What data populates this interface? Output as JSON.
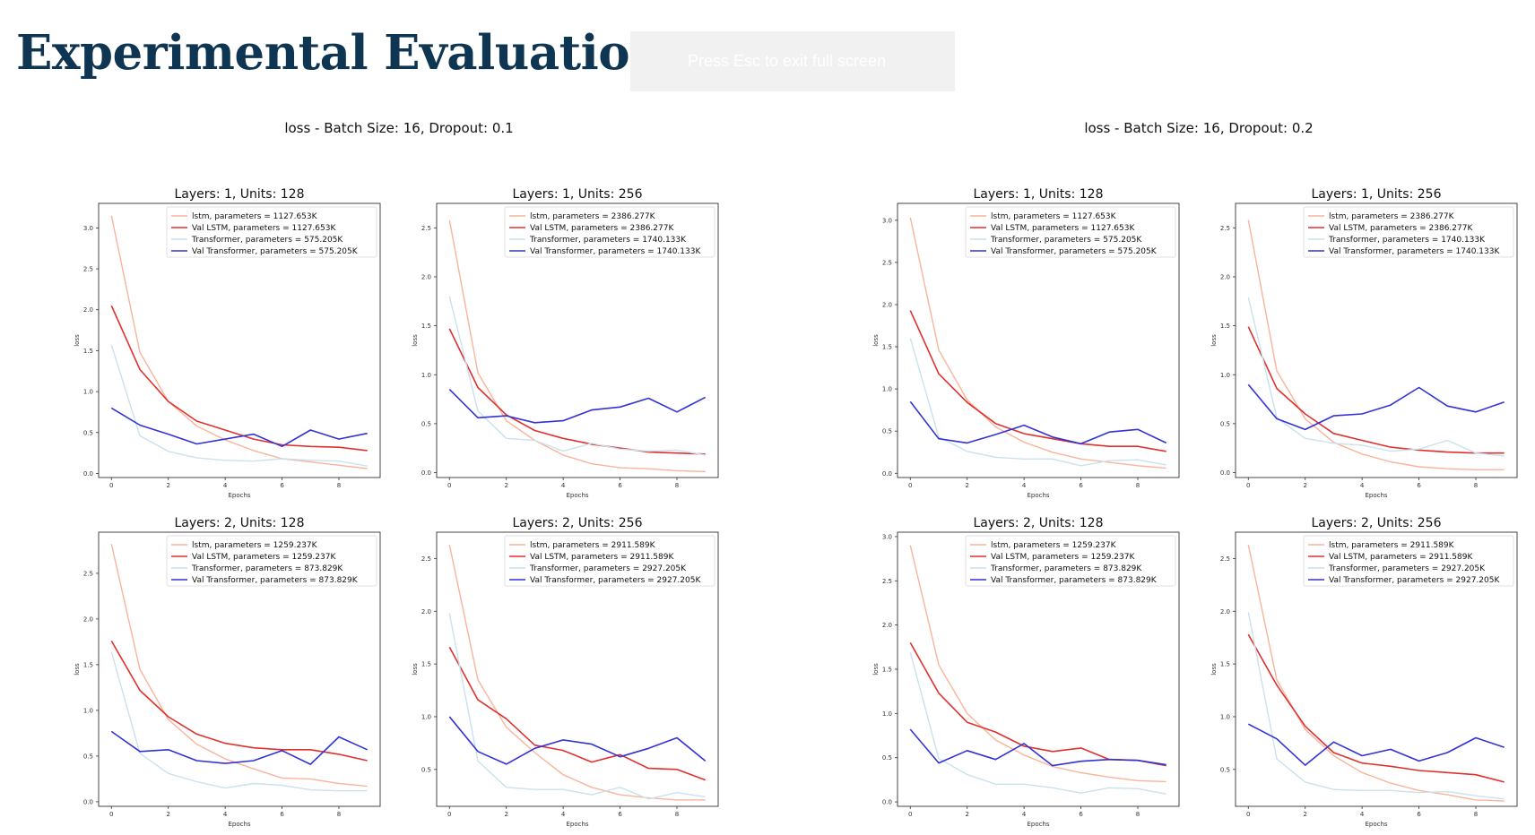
{
  "page": {
    "title": "Experimental Evaluation II - Loss",
    "fullscreen_hint": "Press Esc to exit full screen"
  },
  "groups": [
    {
      "title": "loss - Batch Size: 16, Dropout: 0.1"
    },
    {
      "title": "loss - Batch Size: 16, Dropout: 0.2"
    }
  ],
  "colors": {
    "lstm": "#f9b49b",
    "val_lstm": "#e0312e",
    "transformer": "#c9e2ee",
    "val_transformer": "#3232d6"
  },
  "chart_data": [
    {
      "type": "line",
      "group": 0,
      "title": "Layers: 1, Units: 128",
      "xlabel": "Epochs",
      "ylabel": "loss",
      "x": [
        0,
        1,
        2,
        3,
        4,
        5,
        6,
        7,
        8,
        9
      ],
      "xticks": [
        0,
        2,
        4,
        6,
        8
      ],
      "ylim": [
        -0.05,
        3.3
      ],
      "yticks": [
        0.0,
        0.5,
        1.0,
        1.5,
        2.0,
        2.5,
        3.0
      ],
      "legend_position": "upper right",
      "series": [
        {
          "name": "lstm, parameters = 1127.653K",
          "color": "#f9b49b",
          "values": [
            3.15,
            1.48,
            0.88,
            0.58,
            0.41,
            0.28,
            0.18,
            0.14,
            0.1,
            0.06
          ]
        },
        {
          "name": "Val LSTM, parameters = 1127.653K",
          "color": "#e0312e",
          "values": [
            2.05,
            1.27,
            0.88,
            0.64,
            0.53,
            0.42,
            0.35,
            0.33,
            0.32,
            0.28
          ]
        },
        {
          "name": "Transformer, parameters = 575.205K",
          "color": "#c9e2ee",
          "values": [
            1.57,
            0.46,
            0.27,
            0.19,
            0.16,
            0.15,
            0.18,
            0.16,
            0.15,
            0.09
          ]
        },
        {
          "name": "Val Transformer, parameters = 575.205K",
          "color": "#3232d6",
          "values": [
            0.8,
            0.59,
            0.48,
            0.36,
            0.42,
            0.48,
            0.33,
            0.53,
            0.42,
            0.49
          ]
        }
      ]
    },
    {
      "type": "line",
      "group": 0,
      "title": "Layers: 1, Units: 256",
      "xlabel": "Epochs",
      "ylabel": "loss",
      "x": [
        0,
        1,
        2,
        3,
        4,
        5,
        6,
        7,
        8,
        9
      ],
      "xticks": [
        0,
        2,
        4,
        6,
        8
      ],
      "ylim": [
        -0.05,
        2.75
      ],
      "yticks": [
        0.0,
        0.5,
        1.0,
        1.5,
        2.0,
        2.5
      ],
      "legend_position": "upper right",
      "series": [
        {
          "name": "lstm, parameters = 2386.277K",
          "color": "#f9b49b",
          "values": [
            2.58,
            1.02,
            0.53,
            0.33,
            0.18,
            0.09,
            0.05,
            0.04,
            0.02,
            0.01
          ]
        },
        {
          "name": "Val LSTM, parameters = 2386.277K",
          "color": "#e0312e",
          "values": [
            1.47,
            0.87,
            0.59,
            0.43,
            0.35,
            0.29,
            0.25,
            0.21,
            0.2,
            0.19
          ]
        },
        {
          "name": "Transformer, parameters = 1740.133K",
          "color": "#c9e2ee",
          "values": [
            1.8,
            0.63,
            0.35,
            0.33,
            0.22,
            0.3,
            0.24,
            0.22,
            0.23,
            0.18
          ]
        },
        {
          "name": "Val Transformer, parameters = 1740.133K",
          "color": "#3232d6",
          "values": [
            0.85,
            0.56,
            0.58,
            0.51,
            0.53,
            0.64,
            0.67,
            0.76,
            0.62,
            0.77
          ]
        }
      ]
    },
    {
      "type": "line",
      "group": 1,
      "title": "Layers: 1, Units: 128",
      "xlabel": "Epochs",
      "ylabel": "loss",
      "x": [
        0,
        1,
        2,
        3,
        4,
        5,
        6,
        7,
        8,
        9
      ],
      "xticks": [
        0,
        2,
        4,
        6,
        8
      ],
      "ylim": [
        -0.05,
        3.2
      ],
      "yticks": [
        0.0,
        0.5,
        1.0,
        1.5,
        2.0,
        2.5,
        3.0
      ],
      "legend_position": "upper right",
      "series": [
        {
          "name": "lstm, parameters = 1127.653K",
          "color": "#f9b49b",
          "values": [
            3.03,
            1.46,
            0.87,
            0.55,
            0.37,
            0.25,
            0.17,
            0.13,
            0.09,
            0.06
          ]
        },
        {
          "name": "Val LSTM, parameters = 1127.653K",
          "color": "#e0312e",
          "values": [
            1.93,
            1.18,
            0.84,
            0.59,
            0.47,
            0.41,
            0.35,
            0.32,
            0.32,
            0.26
          ]
        },
        {
          "name": "Transformer, parameters = 575.205K",
          "color": "#c9e2ee",
          "values": [
            1.6,
            0.43,
            0.26,
            0.19,
            0.17,
            0.17,
            0.09,
            0.15,
            0.16,
            0.1
          ]
        },
        {
          "name": "Val Transformer, parameters = 575.205K",
          "color": "#3232d6",
          "values": [
            0.85,
            0.41,
            0.36,
            0.46,
            0.57,
            0.43,
            0.35,
            0.49,
            0.52,
            0.36
          ]
        }
      ]
    },
    {
      "type": "line",
      "group": 1,
      "title": "Layers: 1, Units: 256",
      "xlabel": "Epochs",
      "ylabel": "loss",
      "x": [
        0,
        1,
        2,
        3,
        4,
        5,
        6,
        7,
        8,
        9
      ],
      "xticks": [
        0,
        2,
        4,
        6,
        8
      ],
      "ylim": [
        -0.05,
        2.75
      ],
      "yticks": [
        0.0,
        0.5,
        1.0,
        1.5,
        2.0,
        2.5
      ],
      "legend_position": "upper right",
      "series": [
        {
          "name": "lstm, parameters = 2386.277K",
          "color": "#f9b49b",
          "values": [
            2.58,
            1.04,
            0.55,
            0.31,
            0.19,
            0.11,
            0.06,
            0.04,
            0.03,
            0.03
          ]
        },
        {
          "name": "Val LSTM, parameters = 2386.277K",
          "color": "#e0312e",
          "values": [
            1.49,
            0.86,
            0.6,
            0.4,
            0.33,
            0.26,
            0.23,
            0.21,
            0.2,
            0.2
          ]
        },
        {
          "name": "Transformer, parameters = 1740.133K",
          "color": "#c9e2ee",
          "values": [
            1.79,
            0.56,
            0.35,
            0.3,
            0.28,
            0.22,
            0.24,
            0.33,
            0.2,
            0.17
          ]
        },
        {
          "name": "Val Transformer, parameters = 1740.133K",
          "color": "#3232d6",
          "values": [
            0.9,
            0.55,
            0.44,
            0.58,
            0.6,
            0.69,
            0.87,
            0.68,
            0.62,
            0.72
          ]
        }
      ]
    },
    {
      "type": "line",
      "group": 0,
      "title": "Layers: 2, Units: 128",
      "xlabel": "Epochs",
      "ylabel": "loss",
      "x": [
        0,
        1,
        2,
        3,
        4,
        5,
        6,
        7,
        8,
        9
      ],
      "xticks": [
        0,
        2,
        4,
        6,
        8
      ],
      "ylim": [
        -0.05,
        2.95
      ],
      "yticks": [
        0.0,
        0.5,
        1.0,
        1.5,
        2.0,
        2.5
      ],
      "legend_position": "upper right",
      "series": [
        {
          "name": "lstm, parameters = 1259.237K",
          "color": "#f9b49b",
          "values": [
            2.82,
            1.45,
            0.9,
            0.63,
            0.47,
            0.36,
            0.26,
            0.25,
            0.2,
            0.17
          ]
        },
        {
          "name": "Val LSTM, parameters = 1259.237K",
          "color": "#e0312e",
          "values": [
            1.76,
            1.22,
            0.93,
            0.74,
            0.64,
            0.59,
            0.57,
            0.57,
            0.52,
            0.45
          ]
        },
        {
          "name": "Transformer, parameters = 873.829K",
          "color": "#c9e2ee",
          "values": [
            1.64,
            0.53,
            0.31,
            0.22,
            0.15,
            0.2,
            0.18,
            0.13,
            0.12,
            0.12
          ]
        },
        {
          "name": "Val Transformer, parameters = 873.829K",
          "color": "#3232d6",
          "values": [
            0.77,
            0.55,
            0.57,
            0.45,
            0.42,
            0.45,
            0.56,
            0.41,
            0.71,
            0.57
          ]
        }
      ]
    },
    {
      "type": "line",
      "group": 0,
      "title": "Layers: 2, Units: 256",
      "xlabel": "Epochs",
      "ylabel": "loss",
      "x": [
        0,
        1,
        2,
        3,
        4,
        5,
        6,
        7,
        8,
        9
      ],
      "xticks": [
        0,
        2,
        4,
        6,
        8
      ],
      "ylim": [
        0.15,
        2.75
      ],
      "yticks": [
        0.5,
        1.0,
        1.5,
        2.0,
        2.5
      ],
      "legend_position": "upper right",
      "series": [
        {
          "name": "lstm, parameters = 2911.589K",
          "color": "#f9b49b",
          "values": [
            2.63,
            1.35,
            0.9,
            0.66,
            0.45,
            0.33,
            0.26,
            0.23,
            0.21,
            0.21
          ]
        },
        {
          "name": "Val LSTM, parameters = 2911.589K",
          "color": "#e0312e",
          "values": [
            1.66,
            1.16,
            0.98,
            0.73,
            0.68,
            0.57,
            0.64,
            0.51,
            0.5,
            0.4
          ]
        },
        {
          "name": "Transformer, parameters = 2927.205K",
          "color": "#c9e2ee",
          "values": [
            1.98,
            0.58,
            0.33,
            0.31,
            0.31,
            0.26,
            0.33,
            0.22,
            0.28,
            0.24
          ]
        },
        {
          "name": "Val Transformer, parameters = 2927.205K",
          "color": "#3232d6",
          "values": [
            1.0,
            0.67,
            0.55,
            0.7,
            0.78,
            0.74,
            0.62,
            0.7,
            0.8,
            0.58
          ]
        }
      ]
    },
    {
      "type": "line",
      "group": 1,
      "title": "Layers: 2, Units: 128",
      "xlabel": "Epochs",
      "ylabel": "loss",
      "x": [
        0,
        1,
        2,
        3,
        4,
        5,
        6,
        7,
        8,
        9
      ],
      "xticks": [
        0,
        2,
        4,
        6,
        8
      ],
      "ylim": [
        -0.05,
        3.05
      ],
      "yticks": [
        0.0,
        0.5,
        1.0,
        1.5,
        2.0,
        2.5,
        3.0
      ],
      "legend_position": "upper right",
      "series": [
        {
          "name": "lstm, parameters = 1259.237K",
          "color": "#f9b49b",
          "values": [
            2.9,
            1.55,
            1.0,
            0.7,
            0.53,
            0.4,
            0.33,
            0.28,
            0.24,
            0.23
          ]
        },
        {
          "name": "Val LSTM, parameters = 1259.237K",
          "color": "#e0312e",
          "values": [
            1.8,
            1.23,
            0.9,
            0.79,
            0.63,
            0.57,
            0.61,
            0.48,
            0.47,
            0.41
          ]
        },
        {
          "name": "Transformer, parameters = 873.829K",
          "color": "#c9e2ee",
          "values": [
            1.69,
            0.49,
            0.31,
            0.2,
            0.2,
            0.16,
            0.1,
            0.16,
            0.15,
            0.09
          ]
        },
        {
          "name": "Val Transformer, parameters = 873.829K",
          "color": "#3232d6",
          "values": [
            0.82,
            0.44,
            0.58,
            0.48,
            0.66,
            0.41,
            0.46,
            0.48,
            0.47,
            0.42
          ]
        }
      ]
    },
    {
      "type": "line",
      "group": 1,
      "title": "Layers: 2, Units: 256",
      "xlabel": "Epochs",
      "ylabel": "loss",
      "x": [
        0,
        1,
        2,
        3,
        4,
        5,
        6,
        7,
        8,
        9
      ],
      "xticks": [
        0,
        2,
        4,
        6,
        8
      ],
      "ylim": [
        0.15,
        2.75
      ],
      "yticks": [
        0.5,
        1.0,
        1.5,
        2.0,
        2.5
      ],
      "legend_position": "upper right",
      "series": [
        {
          "name": "lstm, parameters = 2911.589K",
          "color": "#f9b49b",
          "values": [
            2.63,
            1.35,
            0.88,
            0.63,
            0.47,
            0.37,
            0.3,
            0.26,
            0.21,
            0.2
          ]
        },
        {
          "name": "Val LSTM, parameters = 2911.589K",
          "color": "#e0312e",
          "values": [
            1.78,
            1.3,
            0.91,
            0.66,
            0.56,
            0.53,
            0.49,
            0.47,
            0.45,
            0.38
          ]
        },
        {
          "name": "Transformer, parameters = 2927.205K",
          "color": "#c9e2ee",
          "values": [
            1.99,
            0.6,
            0.38,
            0.31,
            0.3,
            0.3,
            0.28,
            0.29,
            0.25,
            0.22
          ]
        },
        {
          "name": "Val Transformer, parameters = 2927.205K",
          "color": "#3232d6",
          "values": [
            0.93,
            0.79,
            0.54,
            0.76,
            0.63,
            0.69,
            0.58,
            0.66,
            0.8,
            0.71
          ]
        }
      ]
    }
  ]
}
